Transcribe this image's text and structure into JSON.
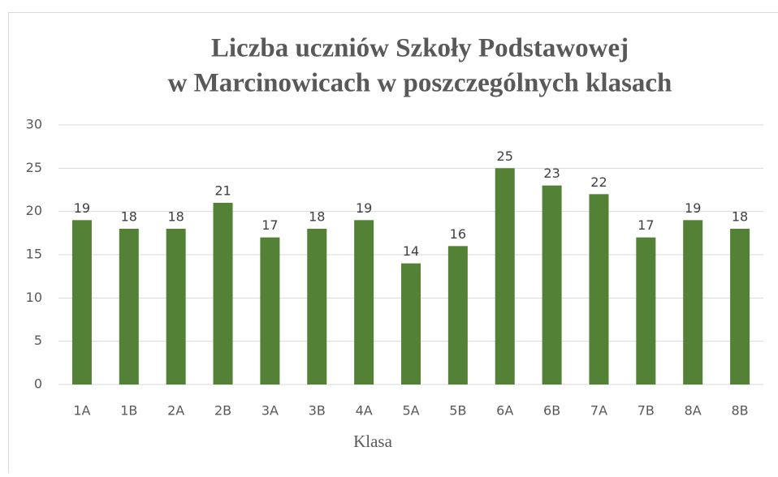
{
  "chart_data": {
    "type": "bar",
    "title": [
      "Liczba uczniów Szkoły Podstawowej",
      "w Marcinowicach w poszczególnych klasach"
    ],
    "x_label": "Klasa",
    "categories": [
      "1A",
      "1B",
      "2A",
      "2B",
      "3A",
      "3B",
      "4A",
      "5A",
      "5B",
      "6A",
      "6B",
      "7A",
      "7B",
      "8A",
      "8B"
    ],
    "values": [
      19,
      18,
      18,
      21,
      17,
      18,
      19,
      14,
      16,
      25,
      23,
      22,
      17,
      19,
      18
    ],
    "color": "#538135",
    "ylim": [
      0,
      30
    ],
    "yticks": [
      0,
      5,
      10,
      15,
      20,
      25,
      30
    ],
    "grid": true,
    "data_labels": true
  }
}
